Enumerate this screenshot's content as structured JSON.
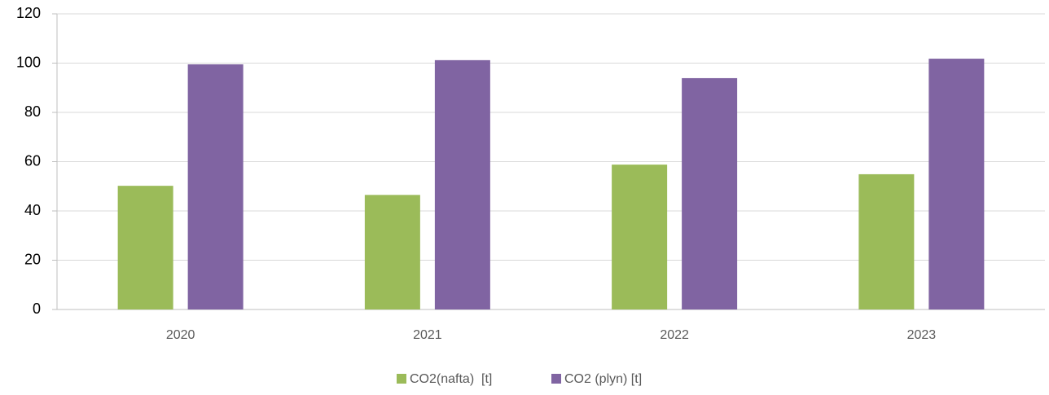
{
  "chart_data": {
    "type": "bar",
    "categories": [
      "2020",
      "2021",
      "2022",
      "2023"
    ],
    "series": [
      {
        "name": "CO2(nafta)  [t]",
        "color": "#9bbb59",
        "values": [
          50.2,
          46.5,
          58.8,
          54.9
        ]
      },
      {
        "name": "CO2 (plyn) [t]",
        "color": "#8064a2",
        "values": [
          99.5,
          101.2,
          93.9,
          101.8
        ]
      }
    ],
    "ylim": [
      0,
      120
    ],
    "yticks": [
      0,
      20,
      40,
      60,
      80,
      100,
      120
    ],
    "grid": true,
    "legend": "bottom"
  }
}
